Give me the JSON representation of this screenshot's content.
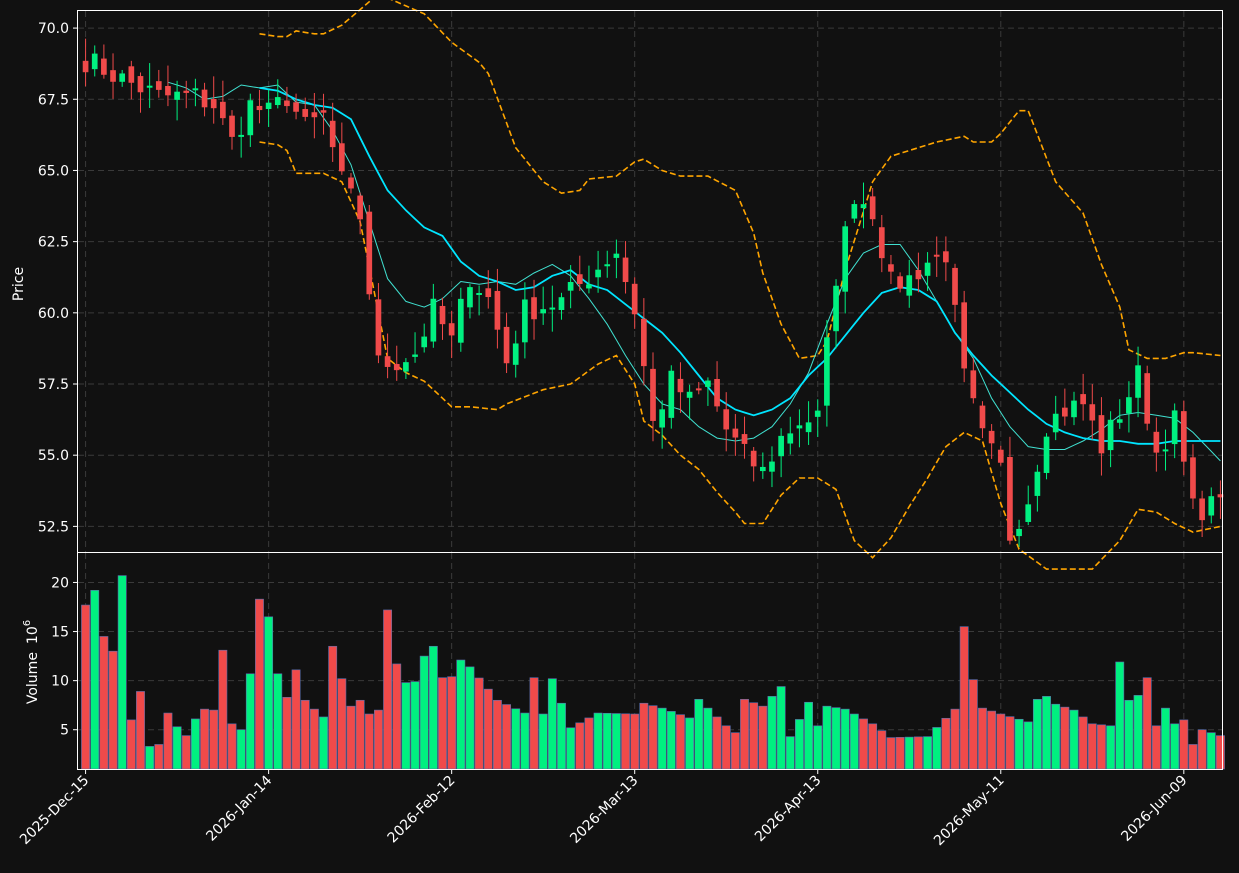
{
  "chart_data": {
    "type": "candlestick",
    "colors": {
      "background": "#111111",
      "up": "#00f080",
      "down": "#f04a4a",
      "ma_fast": "#40e0d0",
      "ma_slow": "#00e5ff",
      "bands": "#ffa500",
      "grid": "#3a3a3a",
      "axis": "#ffffff"
    },
    "price_panel": {
      "ylabel": "Price",
      "ylim": [
        51.6,
        70.6
      ],
      "yticks": [
        "52.5",
        "55.0",
        "57.5",
        "60.0",
        "62.5",
        "65.0",
        "67.5",
        "70.0"
      ],
      "ytick_values": [
        52.5,
        55.0,
        57.5,
        60.0,
        62.5,
        65.0,
        67.5,
        70.0
      ],
      "grid": true
    },
    "volume_panel": {
      "ylabel": "Volume",
      "ylabel_exponent": "10",
      "ylabel_exponent_power": "6",
      "ylim": [
        1,
        23
      ],
      "yticks": [
        "5",
        "10",
        "15",
        "20"
      ],
      "ytick_values": [
        5,
        10,
        15,
        20
      ],
      "grid": true
    },
    "x_axis": {
      "n_bars": 125,
      "tick_labels": [
        "2025-Dec-15",
        "2026-Jan-14",
        "2026-Feb-12",
        "2026-Mar-13",
        "2026-Apr-13",
        "2026-May-11",
        "2026-Jun-09"
      ],
      "tick_indices": [
        0,
        20,
        40,
        60,
        80,
        100,
        120
      ]
    },
    "ohlc_anchor_closes": [
      [
        0,
        68.9
      ],
      [
        4,
        68.2
      ],
      [
        8,
        67.6
      ],
      [
        12,
        67.6
      ],
      [
        14,
        67.3
      ],
      [
        16,
        66.0
      ],
      [
        18,
        67.3
      ],
      [
        20,
        67.0
      ],
      [
        22,
        67.6
      ],
      [
        24,
        66.5
      ],
      [
        26,
        66.9
      ],
      [
        28,
        64.6
      ],
      [
        30,
        63.4
      ],
      [
        32,
        58.2
      ],
      [
        34,
        58.3
      ],
      [
        36,
        58.6
      ],
      [
        38,
        60.1
      ],
      [
        40,
        59.0
      ],
      [
        42,
        61.3
      ],
      [
        44,
        60.5
      ],
      [
        46,
        58.3
      ],
      [
        48,
        60.1
      ],
      [
        52,
        60.4
      ],
      [
        55,
        61.3
      ],
      [
        58,
        62.2
      ],
      [
        60,
        60.1
      ],
      [
        62,
        56.1
      ],
      [
        64,
        57.6
      ],
      [
        66,
        56.9
      ],
      [
        68,
        57.5
      ],
      [
        70,
        55.9
      ],
      [
        72,
        55.0
      ],
      [
        74,
        54.4
      ],
      [
        76,
        55.6
      ],
      [
        78,
        56.2
      ],
      [
        80,
        56.3
      ],
      [
        82,
        61.3
      ],
      [
        84,
        64.2
      ],
      [
        86,
        63.6
      ],
      [
        88,
        61.0
      ],
      [
        90,
        61.2
      ],
      [
        92,
        61.8
      ],
      [
        94,
        62.1
      ],
      [
        96,
        57.7
      ],
      [
        98,
        55.6
      ],
      [
        100,
        54.5
      ],
      [
        101,
        52.2
      ],
      [
        103,
        53.5
      ],
      [
        105,
        56.1
      ],
      [
        107,
        56.6
      ],
      [
        109,
        56.8
      ],
      [
        111,
        55.3
      ],
      [
        113,
        56.5
      ],
      [
        115,
        57.8
      ],
      [
        117,
        55.1
      ],
      [
        119,
        56.2
      ],
      [
        121,
        53.1
      ],
      [
        123,
        53.2
      ],
      [
        124,
        53.8
      ]
    ],
    "volume_anchors_millions": [
      [
        0,
        17.7
      ],
      [
        1,
        19.2
      ],
      [
        2,
        14.5
      ],
      [
        3,
        13.0
      ],
      [
        4,
        20.7
      ],
      [
        5,
        6.0
      ],
      [
        6,
        8.9
      ],
      [
        7,
        3.3
      ],
      [
        8,
        3.5
      ],
      [
        9,
        6.7
      ],
      [
        10,
        5.3
      ],
      [
        11,
        4.4
      ],
      [
        12,
        6.1
      ],
      [
        13,
        7.1
      ],
      [
        14,
        7.0
      ],
      [
        15,
        13.1
      ],
      [
        16,
        5.6
      ],
      [
        17,
        5.0
      ],
      [
        18,
        10.7
      ],
      [
        19,
        18.3
      ],
      [
        20,
        16.5
      ],
      [
        21,
        10.7
      ],
      [
        22,
        8.3
      ],
      [
        23,
        11.1
      ],
      [
        24,
        8.0
      ],
      [
        25,
        7.1
      ],
      [
        26,
        6.3
      ],
      [
        27,
        13.5
      ],
      [
        28,
        10.2
      ],
      [
        29,
        7.4
      ],
      [
        30,
        8.0
      ],
      [
        31,
        6.6
      ],
      [
        32,
        7.0
      ],
      [
        33,
        17.2
      ],
      [
        34,
        11.7
      ],
      [
        35,
        9.8
      ],
      [
        36,
        9.9
      ],
      [
        37,
        12.5
      ],
      [
        38,
        13.5
      ],
      [
        39,
        10.3
      ],
      [
        40,
        10.4
      ],
      [
        41,
        12.1
      ],
      [
        42,
        11.4
      ],
      [
        45,
        8.0
      ],
      [
        48,
        6.7
      ],
      [
        49,
        10.3
      ],
      [
        50,
        6.6
      ],
      [
        51,
        10.2
      ],
      [
        53,
        5.2
      ],
      [
        56,
        6.7
      ],
      [
        60,
        6.6
      ],
      [
        61,
        7.7
      ],
      [
        63,
        7.2
      ],
      [
        66,
        6.2
      ],
      [
        67,
        8.1
      ],
      [
        70,
        5.4
      ],
      [
        71,
        4.7
      ],
      [
        72,
        8.1
      ],
      [
        74,
        7.4
      ],
      [
        76,
        9.4
      ],
      [
        77,
        4.3
      ],
      [
        79,
        7.8
      ],
      [
        80,
        5.4
      ],
      [
        81,
        7.4
      ],
      [
        83,
        7.1
      ],
      [
        86,
        5.6
      ],
      [
        88,
        4.2
      ],
      [
        92,
        4.3
      ],
      [
        95,
        7.1
      ],
      [
        96,
        15.5
      ],
      [
        97,
        10.1
      ],
      [
        98,
        7.2
      ],
      [
        100,
        6.6
      ],
      [
        103,
        5.8
      ],
      [
        104,
        8.1
      ],
      [
        105,
        8.4
      ],
      [
        106,
        7.6
      ],
      [
        108,
        7.0
      ],
      [
        110,
        5.6
      ],
      [
        112,
        5.4
      ],
      [
        113,
        11.9
      ],
      [
        114,
        8.0
      ],
      [
        115,
        8.5
      ],
      [
        116,
        10.3
      ],
      [
        117,
        5.4
      ],
      [
        118,
        7.2
      ],
      [
        119,
        5.6
      ],
      [
        120,
        6.0
      ],
      [
        121,
        3.5
      ],
      [
        122,
        5.0
      ],
      [
        124,
        4.4
      ]
    ],
    "upper_band_anchors": [
      [
        19,
        69.8
      ],
      [
        21,
        69.7
      ],
      [
        22,
        69.7
      ],
      [
        23,
        69.9
      ],
      [
        25,
        69.8
      ],
      [
        26,
        69.8
      ],
      [
        28,
        70.1
      ],
      [
        32,
        71.2
      ],
      [
        37,
        70.5
      ],
      [
        40,
        69.5
      ],
      [
        43,
        68.8
      ],
      [
        44,
        68.4
      ],
      [
        47,
        65.8
      ],
      [
        50,
        64.6
      ],
      [
        52,
        64.2
      ],
      [
        54,
        64.3
      ],
      [
        55,
        64.7
      ],
      [
        58,
        64.8
      ],
      [
        60,
        65.3
      ],
      [
        61,
        65.4
      ],
      [
        63,
        65.0
      ],
      [
        65,
        64.8
      ],
      [
        68,
        64.8
      ],
      [
        71,
        64.3
      ],
      [
        73,
        62.8
      ],
      [
        74,
        61.4
      ],
      [
        76,
        59.6
      ],
      [
        78,
        58.4
      ],
      [
        80,
        58.5
      ],
      [
        81,
        59.0
      ],
      [
        83,
        61.5
      ],
      [
        86,
        64.6
      ],
      [
        88,
        65.5
      ],
      [
        90,
        65.7
      ],
      [
        93,
        66.0
      ],
      [
        96,
        66.2
      ],
      [
        97,
        66.0
      ],
      [
        99,
        66.0
      ],
      [
        100,
        66.3
      ],
      [
        102,
        67.1
      ],
      [
        103,
        67.1
      ],
      [
        106,
        64.6
      ],
      [
        109,
        63.5
      ],
      [
        111,
        61.7
      ],
      [
        113,
        60.2
      ],
      [
        114,
        58.7
      ],
      [
        116,
        58.4
      ],
      [
        118,
        58.4
      ],
      [
        120,
        58.6
      ],
      [
        121,
        58.6
      ],
      [
        124,
        58.5
      ]
    ],
    "lower_band_anchors": [
      [
        19,
        66.0
      ],
      [
        21,
        65.9
      ],
      [
        22,
        65.7
      ],
      [
        23,
        64.9
      ],
      [
        26,
        64.9
      ],
      [
        28,
        64.6
      ],
      [
        30,
        63.2
      ],
      [
        33,
        58.4
      ],
      [
        35,
        57.9
      ],
      [
        37,
        57.6
      ],
      [
        40,
        56.7
      ],
      [
        42,
        56.7
      ],
      [
        45,
        56.6
      ],
      [
        46,
        56.8
      ],
      [
        50,
        57.3
      ],
      [
        53,
        57.5
      ],
      [
        56,
        58.2
      ],
      [
        58,
        58.5
      ],
      [
        60,
        57.5
      ],
      [
        61,
        56.2
      ],
      [
        63,
        55.7
      ],
      [
        65,
        55.0
      ],
      [
        67,
        54.5
      ],
      [
        69,
        53.7
      ],
      [
        71,
        53.0
      ],
      [
        72,
        52.6
      ],
      [
        74,
        52.6
      ],
      [
        76,
        53.6
      ],
      [
        78,
        54.2
      ],
      [
        80,
        54.2
      ],
      [
        82,
        53.8
      ],
      [
        84,
        52.0
      ],
      [
        86,
        51.4
      ],
      [
        88,
        52.1
      ],
      [
        90,
        53.2
      ],
      [
        92,
        54.2
      ],
      [
        94,
        55.3
      ],
      [
        96,
        55.8
      ],
      [
        98,
        55.5
      ],
      [
        100,
        53.3
      ],
      [
        102,
        51.7
      ],
      [
        105,
        51.0
      ],
      [
        110,
        51.0
      ],
      [
        113,
        52.0
      ],
      [
        115,
        53.1
      ],
      [
        117,
        53.0
      ],
      [
        119,
        52.6
      ],
      [
        121,
        52.3
      ],
      [
        124,
        52.5
      ]
    ],
    "ma_slow_anchors": [
      [
        19,
        67.9
      ],
      [
        21,
        67.8
      ],
      [
        23,
        67.5
      ],
      [
        25,
        67.3
      ],
      [
        27,
        67.2
      ],
      [
        29,
        66.8
      ],
      [
        31,
        65.5
      ],
      [
        33,
        64.3
      ],
      [
        35,
        63.6
      ],
      [
        37,
        63.0
      ],
      [
        39,
        62.7
      ],
      [
        41,
        61.8
      ],
      [
        43,
        61.3
      ],
      [
        45,
        61.1
      ],
      [
        47,
        60.8
      ],
      [
        49,
        60.9
      ],
      [
        51,
        61.3
      ],
      [
        53,
        61.5
      ],
      [
        55,
        61.0
      ],
      [
        57,
        60.8
      ],
      [
        59,
        60.3
      ],
      [
        61,
        59.8
      ],
      [
        63,
        59.3
      ],
      [
        65,
        58.6
      ],
      [
        67,
        57.8
      ],
      [
        69,
        57.0
      ],
      [
        71,
        56.6
      ],
      [
        73,
        56.4
      ],
      [
        75,
        56.6
      ],
      [
        77,
        57.0
      ],
      [
        79,
        57.8
      ],
      [
        81,
        58.4
      ],
      [
        83,
        59.2
      ],
      [
        85,
        60.0
      ],
      [
        87,
        60.7
      ],
      [
        89,
        60.9
      ],
      [
        91,
        60.8
      ],
      [
        93,
        60.4
      ],
      [
        95,
        59.3
      ],
      [
        97,
        58.5
      ],
      [
        99,
        57.8
      ],
      [
        101,
        57.2
      ],
      [
        103,
        56.6
      ],
      [
        105,
        56.1
      ],
      [
        107,
        55.8
      ],
      [
        109,
        55.6
      ],
      [
        111,
        55.5
      ],
      [
        113,
        55.5
      ],
      [
        115,
        55.4
      ],
      [
        117,
        55.4
      ],
      [
        119,
        55.5
      ],
      [
        121,
        55.5
      ],
      [
        124,
        55.5
      ]
    ],
    "ma_fast_anchors": [
      [
        9,
        68.1
      ],
      [
        11,
        67.9
      ],
      [
        13,
        67.5
      ],
      [
        15,
        67.6
      ],
      [
        17,
        68.0
      ],
      [
        19,
        67.9
      ],
      [
        21,
        68.0
      ],
      [
        23,
        67.4
      ],
      [
        25,
        67.3
      ],
      [
        27,
        66.4
      ],
      [
        29,
        65.2
      ],
      [
        31,
        63.2
      ],
      [
        33,
        61.2
      ],
      [
        35,
        60.4
      ],
      [
        37,
        60.2
      ],
      [
        39,
        60.5
      ],
      [
        41,
        61.1
      ],
      [
        43,
        61.0
      ],
      [
        45,
        61.1
      ],
      [
        47,
        61.0
      ],
      [
        49,
        61.4
      ],
      [
        51,
        61.7
      ],
      [
        53,
        61.3
      ],
      [
        55,
        60.5
      ],
      [
        57,
        59.6
      ],
      [
        59,
        58.5
      ],
      [
        61,
        57.5
      ],
      [
        63,
        56.8
      ],
      [
        65,
        56.6
      ],
      [
        67,
        56.0
      ],
      [
        69,
        55.6
      ],
      [
        71,
        55.5
      ],
      [
        73,
        55.6
      ],
      [
        75,
        56.0
      ],
      [
        77,
        56.8
      ],
      [
        79,
        57.9
      ],
      [
        81,
        59.6
      ],
      [
        83,
        61.2
      ],
      [
        85,
        62.1
      ],
      [
        87,
        62.4
      ],
      [
        89,
        62.4
      ],
      [
        91,
        61.5
      ],
      [
        93,
        60.4
      ],
      [
        95,
        59.3
      ],
      [
        97,
        58.4
      ],
      [
        99,
        57.0
      ],
      [
        101,
        56.0
      ],
      [
        103,
        55.3
      ],
      [
        105,
        55.2
      ],
      [
        107,
        55.2
      ],
      [
        109,
        55.5
      ],
      [
        111,
        55.9
      ],
      [
        113,
        56.4
      ],
      [
        115,
        56.5
      ],
      [
        117,
        56.4
      ],
      [
        119,
        56.3
      ],
      [
        121,
        55.8
      ],
      [
        124,
        54.8
      ]
    ]
  }
}
